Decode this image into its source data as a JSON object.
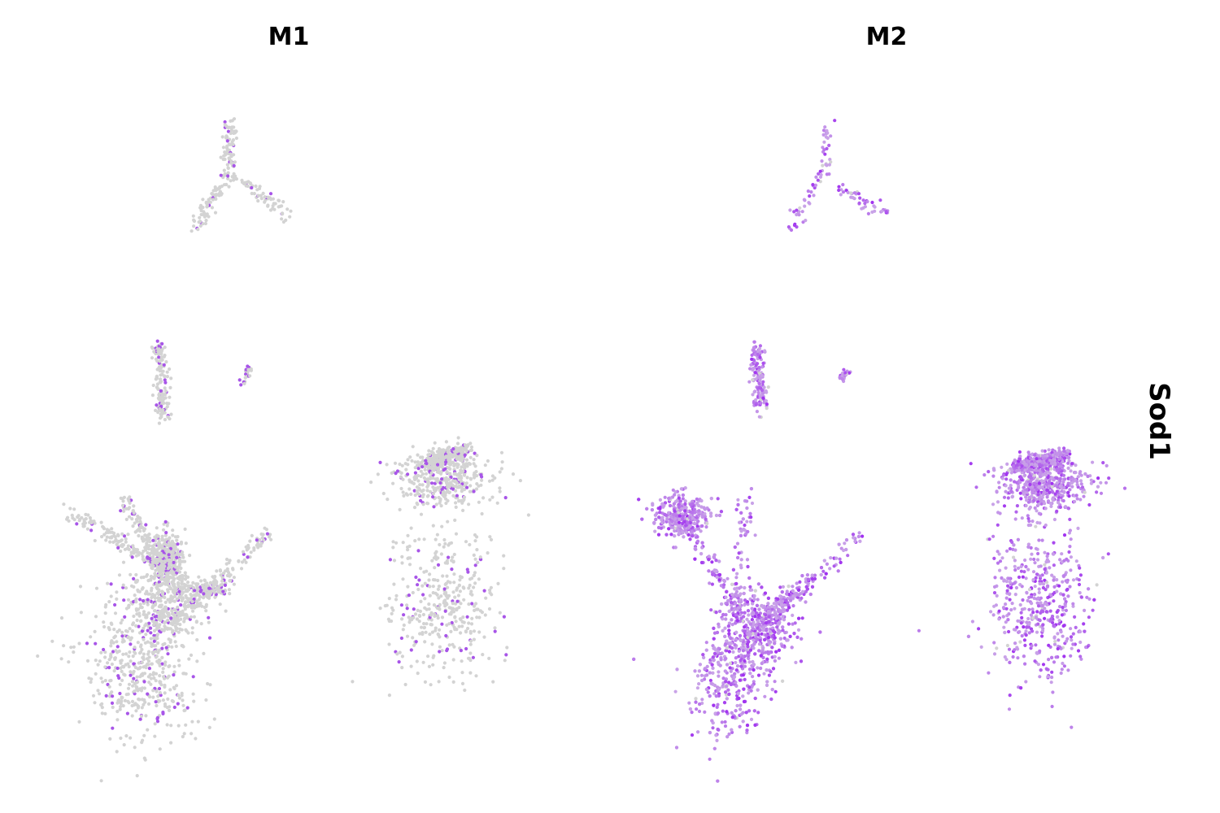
{
  "chart_data": {
    "type": "scatter",
    "title": "",
    "row_label": "Sod1",
    "xlabel": "",
    "ylabel": "",
    "grid": false,
    "axes_visible": false,
    "panels": [
      {
        "name": "M1",
        "title": "M1",
        "expressing_fraction": 0.12,
        "point_colors": {
          "background": "#d3d3d3",
          "expressing": "#a855e8"
        },
        "clusters": [
          {
            "id": "triskelion-top",
            "points": 220,
            "center": [
              1.2,
              9.0
            ]
          },
          {
            "id": "vertical-mid",
            "points": 150,
            "center": [
              -0.8,
              4.6
            ]
          },
          {
            "id": "small-mid",
            "points": 25,
            "center": [
              1.7,
              4.4
            ]
          },
          {
            "id": "large-lower-left",
            "points": 1700,
            "center": [
              -1.2,
              -3.2
            ]
          },
          {
            "id": "right-blob",
            "points": 1050,
            "center": [
              6.3,
              -1.6
            ]
          }
        ]
      },
      {
        "name": "M2",
        "title": "M2",
        "expressing_fraction": 0.97,
        "point_colors": {
          "background": "#d3d3d3",
          "low": "#c9a3e8",
          "high": "#a02ff0"
        },
        "clusters": [
          {
            "id": "triskelion-top",
            "points": 110,
            "center": [
              1.2,
              9.0
            ]
          },
          {
            "id": "vertical-mid",
            "points": 150,
            "center": [
              -0.8,
              4.6
            ]
          },
          {
            "id": "small-mid",
            "points": 25,
            "center": [
              1.7,
              4.4
            ]
          },
          {
            "id": "large-lower-left",
            "points": 2100,
            "center": [
              -0.9,
              -2.4
            ]
          },
          {
            "id": "right-blob",
            "points": 1400,
            "center": [
              6.3,
              -1.6
            ]
          }
        ]
      }
    ]
  },
  "colors": {
    "background": "#ffffff",
    "text": "#000000"
  }
}
